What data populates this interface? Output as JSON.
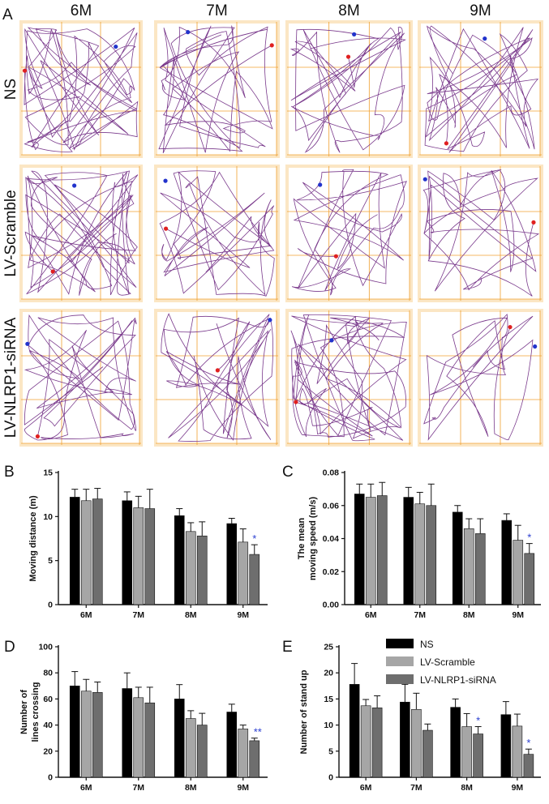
{
  "figure_a": {
    "panel_label": "A",
    "columns": [
      "6M",
      "7M",
      "8M",
      "9M"
    ],
    "rows": [
      "NS",
      "LV-Scramble",
      "LV-NLRP1-siRNA"
    ],
    "colors": {
      "track": "#7a3a8c",
      "grid": "#f0a030",
      "frame_bg": "#fbe6c4",
      "start": "#2233cc",
      "end": "#e02020"
    }
  },
  "legend": {
    "items": [
      {
        "name": "NS",
        "color": "#000000"
      },
      {
        "name": "LV-Scramble",
        "color": "#a6a6a6"
      },
      {
        "name": "LV-NLRP1-siRNA",
        "color": "#6e6e6e"
      }
    ]
  },
  "chart_data": [
    {
      "panel": "B",
      "type": "bar",
      "ylabel": "Moving distance (m)",
      "categories": [
        "6M",
        "7M",
        "8M",
        "9M"
      ],
      "ylim": [
        0,
        15
      ],
      "yticks": [
        "0",
        "5",
        "10",
        "15"
      ],
      "ytick_values": [
        0,
        5,
        10,
        15
      ],
      "series": [
        {
          "name": "NS",
          "values": [
            12.2,
            11.8,
            10.1,
            9.2
          ],
          "errors": [
            0.9,
            1.0,
            0.8,
            0.6
          ]
        },
        {
          "name": "LV-Scramble",
          "values": [
            11.8,
            11.0,
            8.3,
            7.1
          ],
          "errors": [
            1.3,
            1.3,
            1.0,
            1.5
          ]
        },
        {
          "name": "LV-NLRP1-siRNA",
          "values": [
            12.0,
            10.9,
            7.8,
            5.7
          ],
          "errors": [
            1.2,
            2.2,
            1.6,
            1.1
          ]
        }
      ],
      "annotations": [
        {
          "category": "9M",
          "series": "LV-NLRP1-siRNA",
          "text": "*"
        }
      ]
    },
    {
      "panel": "C",
      "type": "bar",
      "ylabel": "The mean\nmoving speed (m/s)",
      "categories": [
        "6M",
        "7M",
        "8M",
        "9M"
      ],
      "ylim": [
        0,
        0.08
      ],
      "yticks": [
        "0.00",
        "0.02",
        "0.04",
        "0.06",
        "0.08"
      ],
      "ytick_values": [
        0,
        0.02,
        0.04,
        0.06,
        0.08
      ],
      "series": [
        {
          "name": "NS",
          "values": [
            0.067,
            0.065,
            0.056,
            0.051
          ],
          "errors": [
            0.006,
            0.006,
            0.004,
            0.004
          ]
        },
        {
          "name": "LV-Scramble",
          "values": [
            0.065,
            0.061,
            0.046,
            0.039
          ],
          "errors": [
            0.008,
            0.007,
            0.006,
            0.009
          ]
        },
        {
          "name": "LV-NLRP1-siRNA",
          "values": [
            0.066,
            0.06,
            0.043,
            0.031
          ],
          "errors": [
            0.008,
            0.013,
            0.009,
            0.006
          ]
        }
      ],
      "annotations": [
        {
          "category": "9M",
          "series": "LV-NLRP1-siRNA",
          "text": "*"
        }
      ]
    },
    {
      "panel": "D",
      "type": "bar",
      "ylabel": "Number of\nlines crossing",
      "categories": [
        "6M",
        "7M",
        "8M",
        "9M"
      ],
      "ylim": [
        0,
        100
      ],
      "yticks": [
        "0",
        "20",
        "40",
        "60",
        "80",
        "100"
      ],
      "ytick_values": [
        0,
        20,
        40,
        60,
        80,
        100
      ],
      "series": [
        {
          "name": "NS",
          "values": [
            70,
            68,
            60,
            50
          ],
          "errors": [
            11,
            12,
            11,
            6
          ]
        },
        {
          "name": "LV-Scramble",
          "values": [
            66,
            61,
            45,
            37
          ],
          "errors": [
            9,
            8,
            6,
            3
          ]
        },
        {
          "name": "LV-NLRP1-siRNA",
          "values": [
            65,
            57,
            40,
            28
          ],
          "errors": [
            8,
            12,
            9,
            2
          ]
        }
      ],
      "annotations": [
        {
          "category": "9M",
          "series": "LV-NLRP1-siRNA",
          "text": "**"
        }
      ]
    },
    {
      "panel": "E",
      "type": "bar",
      "ylabel": "Number of stand up",
      "categories": [
        "6M",
        "7M",
        "8M",
        "9M"
      ],
      "ylim": [
        0,
        25
      ],
      "yticks": [
        "0",
        "5",
        "10",
        "15",
        "20",
        "25"
      ],
      "ytick_values": [
        0,
        5,
        10,
        15,
        20,
        25
      ],
      "series": [
        {
          "name": "NS",
          "values": [
            17.8,
            14.4,
            13.4,
            12.0
          ],
          "errors": [
            4.0,
            3.4,
            1.6,
            2.5
          ]
        },
        {
          "name": "LV-Scramble",
          "values": [
            13.7,
            13.0,
            9.7,
            9.8
          ],
          "errors": [
            1.2,
            3.1,
            2.5,
            2.3
          ]
        },
        {
          "name": "LV-NLRP1-siRNA",
          "values": [
            13.3,
            9.0,
            8.3,
            4.4
          ],
          "errors": [
            2.3,
            1.2,
            1.4,
            1.0
          ]
        }
      ],
      "annotations": [
        {
          "category": "8M",
          "series": "LV-NLRP1-siRNA",
          "text": "*"
        },
        {
          "category": "9M",
          "series": "LV-NLRP1-siRNA",
          "text": "*"
        }
      ]
    }
  ]
}
